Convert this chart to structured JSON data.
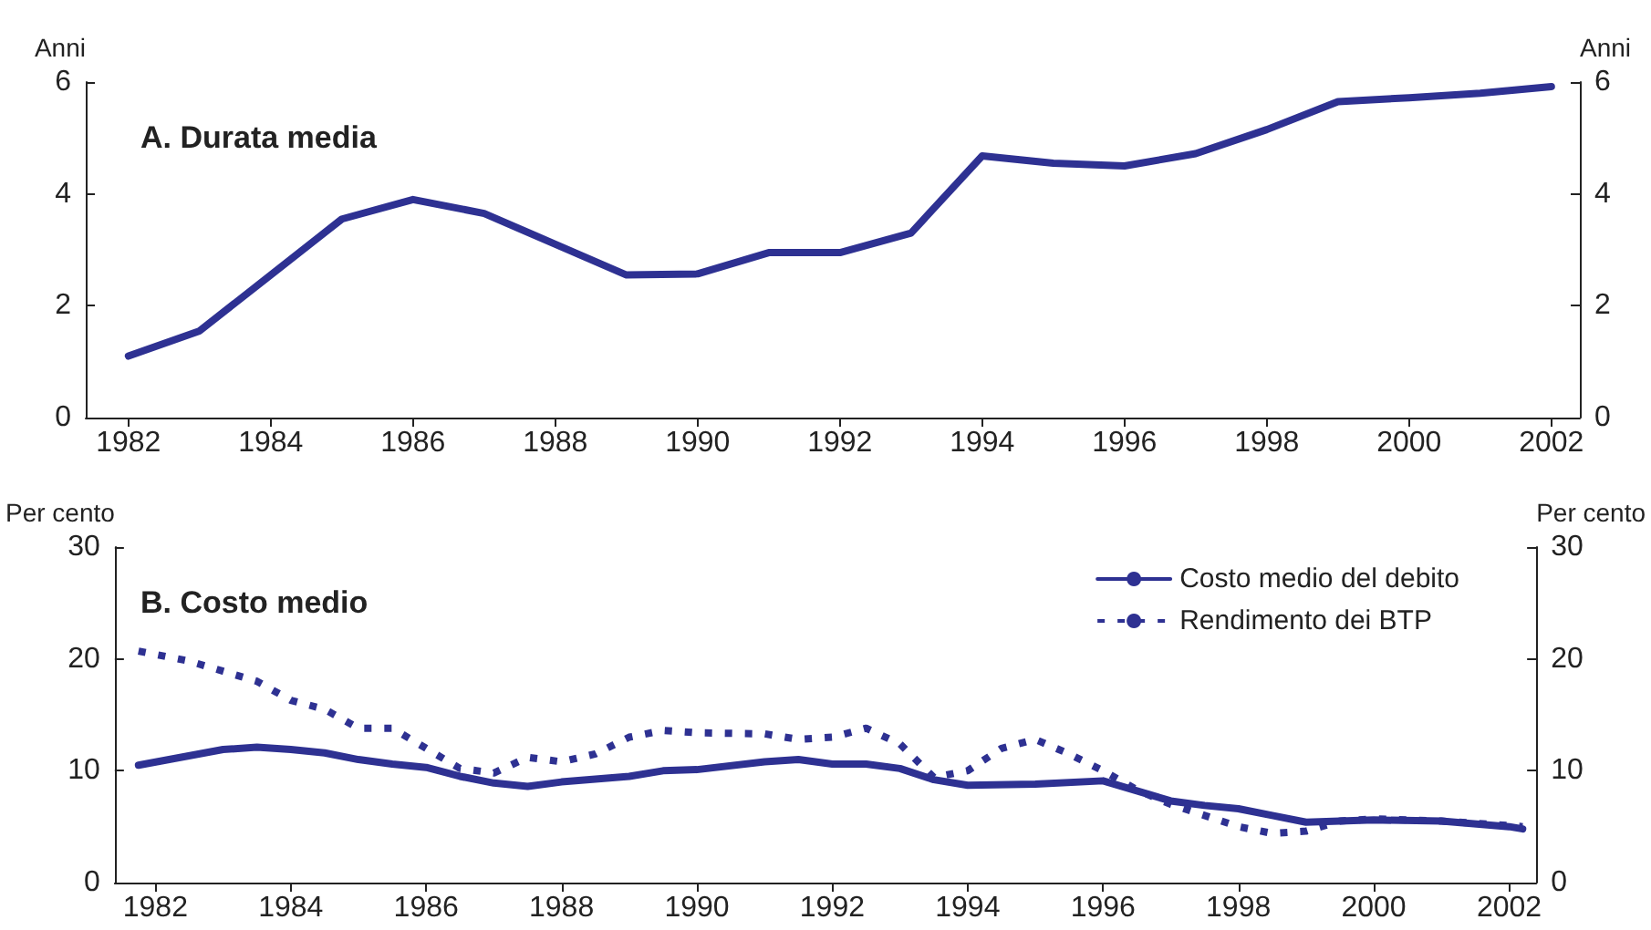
{
  "chart_data": [
    {
      "type": "line",
      "title": "A. Durata media",
      "ylabel": "Anni",
      "y2label": "Anni",
      "xlim": [
        1981.4,
        2002.4
      ],
      "xticks": [
        1982,
        1984,
        1986,
        1988,
        1990,
        1992,
        1994,
        1996,
        1998,
        2000,
        2002
      ],
      "ylim": [
        0,
        6
      ],
      "yticks": [
        0,
        2,
        4,
        6
      ],
      "y2lim": [
        0,
        6
      ],
      "y2ticks": [
        0,
        2,
        4,
        6
      ],
      "grid": false,
      "legend": false,
      "marker": "none",
      "series": [
        {
          "color": "#2e3192",
          "line_style": "solid",
          "x": [
            1982,
            1983,
            1984,
            1985,
            1986,
            1987,
            1988,
            1989,
            1990,
            1991,
            1992,
            1993,
            1994,
            1995,
            1996,
            1997,
            1998,
            1999,
            2000,
            2001,
            2002
          ],
          "values": [
            1.1,
            1.55,
            2.55,
            3.55,
            3.9,
            3.65,
            3.1,
            2.55,
            2.57,
            2.95,
            2.95,
            3.3,
            4.68,
            4.55,
            4.5,
            4.72,
            5.15,
            5.65,
            5.72,
            5.8,
            5.92
          ]
        }
      ]
    },
    {
      "type": "line",
      "title": "B. Costo medio",
      "ylabel": "Per cento",
      "y2label": "Per cento",
      "xlim": [
        1981.4,
        2002.4
      ],
      "xticks": [
        1982,
        1984,
        1986,
        1988,
        1990,
        1992,
        1994,
        1996,
        1998,
        2000,
        2002
      ],
      "ylim": [
        0,
        30
      ],
      "yticks": [
        0,
        10,
        20,
        30
      ],
      "y2lim": [
        0,
        30
      ],
      "y2ticks": [
        0,
        10,
        20,
        30
      ],
      "grid": false,
      "legend": "top right",
      "marker": "none",
      "series": [
        {
          "name": "Costo medio del debito",
          "color": "#2e3192",
          "line_style": "solid",
          "x": [
            1981.75,
            1983,
            1983.5,
            1984,
            1984.5,
            1985,
            1985.5,
            1986,
            1986.5,
            1987,
            1987.5,
            1988,
            1989,
            1989.5,
            1990,
            1991,
            1991.5,
            1992,
            1992.5,
            1993,
            1993.5,
            1994,
            1995,
            1996,
            1996.5,
            1997,
            1997.5,
            1998,
            1998.5,
            1999,
            2000,
            2001,
            2002,
            2002.2
          ],
          "values": [
            10.5,
            11.9,
            12.1,
            11.9,
            11.6,
            11.0,
            10.6,
            10.3,
            9.5,
            8.9,
            8.6,
            9.0,
            9.5,
            10.0,
            10.1,
            10.8,
            11.0,
            10.6,
            10.6,
            10.2,
            9.2,
            8.7,
            8.8,
            9.1,
            8.2,
            7.3,
            6.9,
            6.6,
            6.0,
            5.4,
            5.6,
            5.5,
            5.0,
            4.8
          ]
        },
        {
          "name": "Rendimento dei BTP",
          "color": "#2e3192",
          "line_style": "dotted",
          "x": [
            1981.75,
            1982.5,
            1983,
            1983.5,
            1984,
            1984.5,
            1985,
            1985.5,
            1986,
            1986.5,
            1987,
            1987.5,
            1988,
            1988.5,
            1989,
            1989.5,
            1990,
            1991,
            1991.5,
            1992,
            1992.5,
            1993,
            1993.5,
            1994,
            1994.5,
            1995,
            1995.5,
            1996,
            1996.5,
            1997,
            1997.5,
            1998,
            1998.5,
            1999,
            1999.5,
            2000,
            2001,
            2002,
            2002.2
          ],
          "values": [
            20.7,
            19.8,
            18.9,
            18.0,
            16.3,
            15.5,
            13.8,
            13.8,
            12.0,
            10.2,
            9.8,
            11.2,
            10.8,
            11.5,
            13.0,
            13.6,
            13.4,
            13.3,
            12.8,
            13.0,
            13.8,
            12.4,
            9.4,
            10.0,
            12.0,
            12.8,
            11.5,
            10.0,
            8.3,
            7.0,
            6.0,
            5.0,
            4.4,
            4.6,
            5.5,
            5.7,
            5.5,
            5.1,
            5.0
          ]
        }
      ]
    }
  ]
}
